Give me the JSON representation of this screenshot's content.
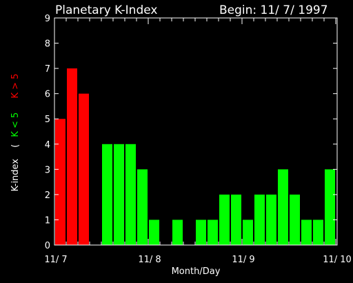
{
  "title": "Planetary K-Index",
  "begin_label": "Begin: 11/ 7/ 1997",
  "xlabel": "Month/Day",
  "ylabel": {
    "main": "K-index",
    "open": "(",
    "low": "K < 5",
    "high": "K > 5"
  },
  "colors": {
    "background": "#000000",
    "axis": "#ffffff",
    "low": "#00ff00",
    "high": "#ff0000"
  },
  "chart_data": {
    "type": "bar",
    "title": "Planetary K-Index",
    "xlabel": "Month/Day",
    "ylabel": "K-index ( K < 5  K > 5",
    "ylim": [
      0,
      9
    ],
    "yticks": [
      0,
      1,
      2,
      3,
      4,
      5,
      6,
      7,
      8,
      9
    ],
    "xticks": [
      "11/ 7",
      "11/ 8",
      "11/ 9",
      "11/ 10"
    ],
    "bins_per_day": 8,
    "threshold": 5,
    "values": [
      5,
      7,
      6,
      0,
      4,
      4,
      4,
      3,
      1,
      0,
      1,
      0,
      1,
      1,
      2,
      2,
      1,
      2,
      2,
      3,
      2,
      1,
      1,
      3
    ]
  }
}
